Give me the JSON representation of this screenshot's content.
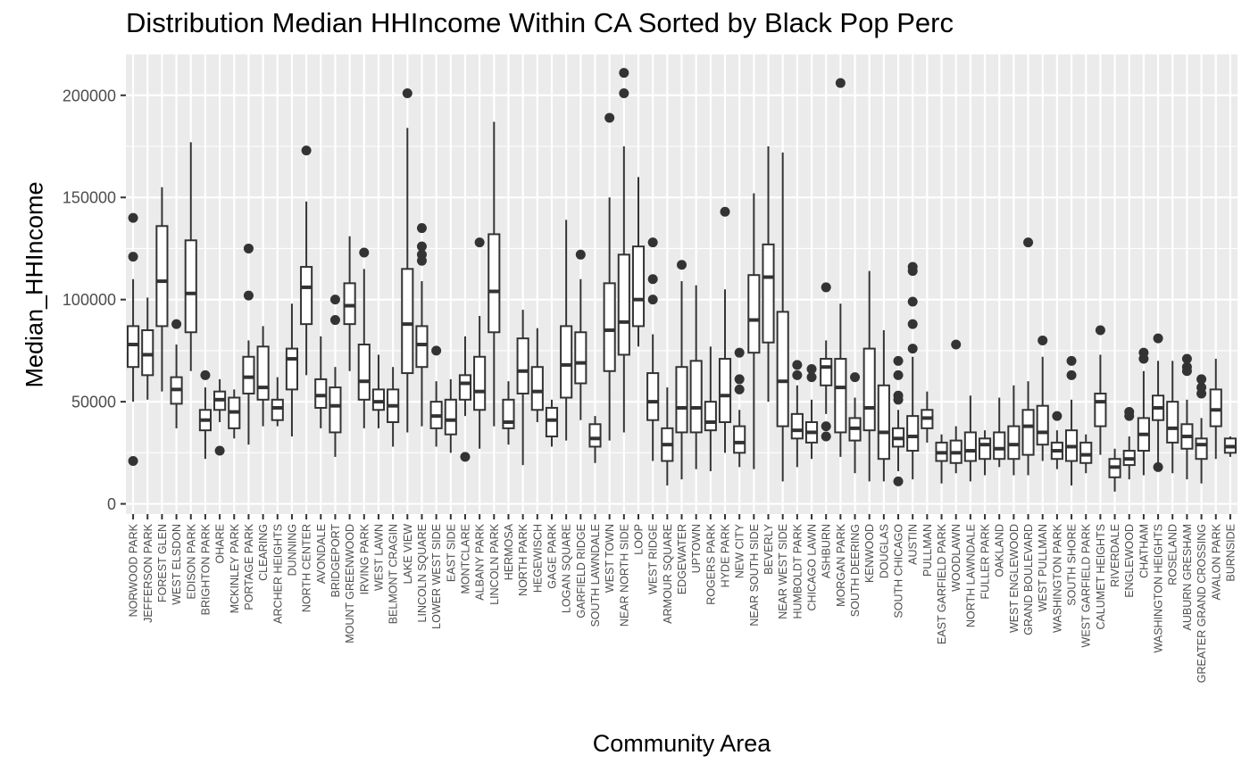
{
  "chart_data": {
    "type": "boxplot",
    "title": "Distribution Median HHIncome Within CA Sorted by Black Pop Perc",
    "xlabel": "Community Area",
    "ylabel": "Median_HHIncome",
    "ylim": [
      -5000,
      220000
    ],
    "yticks": [
      0,
      50000,
      100000,
      150000,
      200000
    ],
    "ytick_labels": [
      "0",
      "50000",
      "100000",
      "150000",
      "200000"
    ],
    "grid": true,
    "background": "#ebebeb",
    "box_fill": "#ffffff",
    "stroke_color": "#333333",
    "categories": [
      "NORWOOD PARK",
      "JEFFERSON PARK",
      "FOREST GLEN",
      "WEST ELSDON",
      "EDISON PARK",
      "BRIGHTON PARK",
      "OHARE",
      "MCKINLEY PARK",
      "PORTAGE PARK",
      "CLEARING",
      "ARCHER HEIGHTS",
      "DUNNING",
      "NORTH CENTER",
      "AVONDALE",
      "BRIDGEPORT",
      "MOUNT GREENWOOD",
      "IRVING PARK",
      "WEST LAWN",
      "BELMONT CRAGIN",
      "LAKE VIEW",
      "LINCOLN SQUARE",
      "LOWER WEST SIDE",
      "EAST SIDE",
      "MONTCLARE",
      "ALBANY PARK",
      "LINCOLN PARK",
      "HERMOSA",
      "NORTH PARK",
      "HEGEWISCH",
      "GAGE PARK",
      "LOGAN SQUARE",
      "GARFIELD RIDGE",
      "SOUTH LAWNDALE",
      "WEST TOWN",
      "NEAR NORTH SIDE",
      "LOOP",
      "WEST RIDGE",
      "ARMOUR SQUARE",
      "EDGEWATER",
      "UPTOWN",
      "ROGERS PARK",
      "HYDE PARK",
      "NEW CITY",
      "NEAR SOUTH SIDE",
      "BEVERLY",
      "NEAR WEST SIDE",
      "HUMBOLDT PARK",
      "CHICAGO LAWN",
      "ASHBURN",
      "MORGAN PARK",
      "SOUTH DEERING",
      "KENWOOD",
      "DOUGLAS",
      "SOUTH CHICAGO",
      "AUSTIN",
      "PULLMAN",
      "EAST GARFIELD PARK",
      "WOODLAWN",
      "NORTH LAWNDALE",
      "FULLER PARK",
      "OAKLAND",
      "WEST ENGLEWOOD",
      "GRAND BOULEVARD",
      "WEST PULLMAN",
      "WASHINGTON PARK",
      "SOUTH SHORE",
      "WEST GARFIELD PARK",
      "CALUMET HEIGHTS",
      "RIVERDALE",
      "ENGLEWOOD",
      "CHATHAM",
      "WASHINGTON HEIGHTS",
      "ROSELAND",
      "AUBURN GRESHAM",
      "GREATER GRAND CROSSING",
      "AVALON PARK",
      "BURNSIDE"
    ],
    "boxes": [
      {
        "lo": 50000,
        "q1": 67000,
        "med": 78000,
        "q3": 87000,
        "hi": 110000,
        "out": [
          140000,
          121000,
          21000
        ]
      },
      {
        "lo": 51000,
        "q1": 63000,
        "med": 73000,
        "q3": 85000,
        "hi": 101000,
        "out": []
      },
      {
        "lo": 55000,
        "q1": 87000,
        "med": 109000,
        "q3": 136000,
        "hi": 155000,
        "out": []
      },
      {
        "lo": 37000,
        "q1": 49000,
        "med": 56000,
        "q3": 62000,
        "hi": 78000,
        "out": [
          88000
        ]
      },
      {
        "lo": 65000,
        "q1": 84000,
        "med": 103000,
        "q3": 129000,
        "hi": 177000,
        "out": []
      },
      {
        "lo": 22000,
        "q1": 36000,
        "med": 41000,
        "q3": 46000,
        "hi": 57000,
        "out": [
          63000
        ]
      },
      {
        "lo": 40000,
        "q1": 46000,
        "med": 51000,
        "q3": 55000,
        "hi": 61000,
        "out": [
          26000
        ]
      },
      {
        "lo": 32000,
        "q1": 37000,
        "med": 45000,
        "q3": 52000,
        "hi": 56000,
        "out": []
      },
      {
        "lo": 29000,
        "q1": 54000,
        "med": 62000,
        "q3": 72000,
        "hi": 80000,
        "out": [
          125000,
          102000
        ]
      },
      {
        "lo": 38000,
        "q1": 51000,
        "med": 57000,
        "q3": 77000,
        "hi": 87000,
        "out": []
      },
      {
        "lo": 38000,
        "q1": 41000,
        "med": 47000,
        "q3": 51000,
        "hi": 62000,
        "out": []
      },
      {
        "lo": 33000,
        "q1": 56000,
        "med": 71000,
        "q3": 76000,
        "hi": 98000,
        "out": []
      },
      {
        "lo": 63000,
        "q1": 88000,
        "med": 106000,
        "q3": 116000,
        "hi": 148000,
        "out": [
          173000
        ]
      },
      {
        "lo": 37000,
        "q1": 47000,
        "med": 53000,
        "q3": 61000,
        "hi": 82000,
        "out": []
      },
      {
        "lo": 23000,
        "q1": 35000,
        "med": 48000,
        "q3": 57000,
        "hi": 67000,
        "out": [
          100000,
          90000
        ]
      },
      {
        "lo": 65000,
        "q1": 88000,
        "med": 97000,
        "q3": 108000,
        "hi": 131000,
        "out": []
      },
      {
        "lo": 37000,
        "q1": 51000,
        "med": 60000,
        "q3": 78000,
        "hi": 115000,
        "out": [
          123000
        ]
      },
      {
        "lo": 37000,
        "q1": 46000,
        "med": 50000,
        "q3": 56000,
        "hi": 73000,
        "out": []
      },
      {
        "lo": 28000,
        "q1": 40000,
        "med": 48000,
        "q3": 56000,
        "hi": 67000,
        "out": []
      },
      {
        "lo": 35000,
        "q1": 64000,
        "med": 88000,
        "q3": 115000,
        "hi": 184000,
        "out": [
          201000
        ]
      },
      {
        "lo": 38000,
        "q1": 67000,
        "med": 78000,
        "q3": 87000,
        "hi": 109000,
        "out": [
          135000,
          126000,
          122000,
          119000
        ]
      },
      {
        "lo": 28000,
        "q1": 37000,
        "med": 43000,
        "q3": 50000,
        "hi": 60000,
        "out": [
          75000
        ]
      },
      {
        "lo": 25000,
        "q1": 34000,
        "med": 41000,
        "q3": 51000,
        "hi": 61000,
        "out": []
      },
      {
        "lo": 43000,
        "q1": 51000,
        "med": 59000,
        "q3": 63000,
        "hi": 82000,
        "out": [
          23000
        ]
      },
      {
        "lo": 27000,
        "q1": 46000,
        "med": 55000,
        "q3": 72000,
        "hi": 92000,
        "out": [
          128000
        ]
      },
      {
        "lo": 38000,
        "q1": 84000,
        "med": 104000,
        "q3": 132000,
        "hi": 187000,
        "out": []
      },
      {
        "lo": 29000,
        "q1": 37000,
        "med": 40000,
        "q3": 51000,
        "hi": 60000,
        "out": []
      },
      {
        "lo": 19000,
        "q1": 54000,
        "med": 65000,
        "q3": 81000,
        "hi": 95000,
        "out": []
      },
      {
        "lo": 40000,
        "q1": 46000,
        "med": 55000,
        "q3": 67000,
        "hi": 86000,
        "out": []
      },
      {
        "lo": 28000,
        "q1": 33000,
        "med": 41000,
        "q3": 47000,
        "hi": 51000,
        "out": []
      },
      {
        "lo": 31000,
        "q1": 52000,
        "med": 68000,
        "q3": 87000,
        "hi": 139000,
        "out": []
      },
      {
        "lo": 41000,
        "q1": 59000,
        "med": 69000,
        "q3": 84000,
        "hi": 110000,
        "out": [
          122000
        ]
      },
      {
        "lo": 20000,
        "q1": 28000,
        "med": 32000,
        "q3": 39000,
        "hi": 43000,
        "out": []
      },
      {
        "lo": 31000,
        "q1": 65000,
        "med": 85000,
        "q3": 108000,
        "hi": 150000,
        "out": [
          189000
        ]
      },
      {
        "lo": 35000,
        "q1": 73000,
        "med": 89000,
        "q3": 122000,
        "hi": 175000,
        "out": [
          211000,
          201000
        ]
      },
      {
        "lo": 77000,
        "q1": 87000,
        "med": 100000,
        "q3": 126000,
        "hi": 160000,
        "out": []
      },
      {
        "lo": 21000,
        "q1": 41000,
        "med": 50000,
        "q3": 64000,
        "hi": 83000,
        "out": [
          128000,
          110000,
          100000
        ]
      },
      {
        "lo": 9000,
        "q1": 21000,
        "med": 29000,
        "q3": 37000,
        "hi": 57000,
        "out": []
      },
      {
        "lo": 12000,
        "q1": 35000,
        "med": 47000,
        "q3": 67000,
        "hi": 109000,
        "out": [
          117000
        ]
      },
      {
        "lo": 17000,
        "q1": 35000,
        "med": 47000,
        "q3": 70000,
        "hi": 107000,
        "out": []
      },
      {
        "lo": 16000,
        "q1": 36000,
        "med": 40000,
        "q3": 50000,
        "hi": 77000,
        "out": []
      },
      {
        "lo": 25000,
        "q1": 40000,
        "med": 53000,
        "q3": 71000,
        "hi": 105000,
        "out": [
          143000
        ]
      },
      {
        "lo": 18000,
        "q1": 25000,
        "med": 30000,
        "q3": 38000,
        "hi": 46000,
        "out": [
          74000,
          61000,
          56000
        ]
      },
      {
        "lo": 17000,
        "q1": 74000,
        "med": 90000,
        "q3": 112000,
        "hi": 152000,
        "out": []
      },
      {
        "lo": 50000,
        "q1": 79000,
        "med": 111000,
        "q3": 127000,
        "hi": 175000,
        "out": []
      },
      {
        "lo": 11000,
        "q1": 38000,
        "med": 60000,
        "q3": 94000,
        "hi": 172000,
        "out": []
      },
      {
        "lo": 18000,
        "q1": 32000,
        "med": 36000,
        "q3": 44000,
        "hi": 58000,
        "out": [
          68000,
          63000
        ]
      },
      {
        "lo": 22000,
        "q1": 30000,
        "med": 35000,
        "q3": 40000,
        "hi": 51000,
        "out": [
          66000,
          62000
        ]
      },
      {
        "lo": 44000,
        "q1": 58000,
        "med": 67000,
        "q3": 71000,
        "hi": 80000,
        "out": [
          106000,
          38000,
          33000
        ]
      },
      {
        "lo": 23000,
        "q1": 35000,
        "med": 57000,
        "q3": 71000,
        "hi": 98000,
        "out": [
          206000
        ]
      },
      {
        "lo": 15000,
        "q1": 31000,
        "med": 37000,
        "q3": 42000,
        "hi": 52000,
        "out": [
          62000
        ]
      },
      {
        "lo": 11000,
        "q1": 36000,
        "med": 47000,
        "q3": 76000,
        "hi": 114000,
        "out": []
      },
      {
        "lo": 11000,
        "q1": 22000,
        "med": 35000,
        "q3": 58000,
        "hi": 85000,
        "out": []
      },
      {
        "lo": 16000,
        "q1": 28000,
        "med": 32000,
        "q3": 37000,
        "hi": 46000,
        "out": [
          70000,
          63000,
          53000,
          51000,
          11000
        ]
      },
      {
        "lo": 12000,
        "q1": 26000,
        "med": 33000,
        "q3": 43000,
        "hi": 72000,
        "out": [
          116000,
          114000,
          99000,
          88000,
          76000
        ]
      },
      {
        "lo": 30000,
        "q1": 37000,
        "med": 42000,
        "q3": 46000,
        "hi": 55000,
        "out": []
      },
      {
        "lo": 10000,
        "q1": 21000,
        "med": 25000,
        "q3": 30000,
        "hi": 34000,
        "out": []
      },
      {
        "lo": 15000,
        "q1": 20000,
        "med": 25000,
        "q3": 31000,
        "hi": 38000,
        "out": [
          78000
        ]
      },
      {
        "lo": 11000,
        "q1": 21000,
        "med": 26000,
        "q3": 35000,
        "hi": 53000,
        "out": []
      },
      {
        "lo": 14000,
        "q1": 22000,
        "med": 29000,
        "q3": 32000,
        "hi": 36000,
        "out": []
      },
      {
        "lo": 18000,
        "q1": 22000,
        "med": 27000,
        "q3": 35000,
        "hi": 52000,
        "out": []
      },
      {
        "lo": 14000,
        "q1": 22000,
        "med": 29000,
        "q3": 38000,
        "hi": 58000,
        "out": []
      },
      {
        "lo": 14000,
        "q1": 24000,
        "med": 38000,
        "q3": 46000,
        "hi": 60000,
        "out": [
          128000
        ]
      },
      {
        "lo": 21000,
        "q1": 29000,
        "med": 35000,
        "q3": 48000,
        "hi": 72000,
        "out": [
          80000
        ]
      },
      {
        "lo": 17000,
        "q1": 22000,
        "med": 26000,
        "q3": 30000,
        "hi": 36000,
        "out": [
          43000
        ]
      },
      {
        "lo": 9000,
        "q1": 21000,
        "med": 28000,
        "q3": 36000,
        "hi": 51000,
        "out": [
          70000,
          63000
        ]
      },
      {
        "lo": 15000,
        "q1": 20000,
        "med": 24000,
        "q3": 30000,
        "hi": 34000,
        "out": []
      },
      {
        "lo": 24000,
        "q1": 38000,
        "med": 50000,
        "q3": 54000,
        "hi": 73000,
        "out": [
          85000
        ]
      },
      {
        "lo": 6000,
        "q1": 13000,
        "med": 18000,
        "q3": 22000,
        "hi": 27000,
        "out": []
      },
      {
        "lo": 12000,
        "q1": 19000,
        "med": 22000,
        "q3": 26000,
        "hi": 33000,
        "out": [
          45000,
          43000
        ]
      },
      {
        "lo": 14000,
        "q1": 26000,
        "med": 34000,
        "q3": 42000,
        "hi": 65000,
        "out": [
          74000,
          71000
        ]
      },
      {
        "lo": 20000,
        "q1": 41000,
        "med": 47000,
        "q3": 53000,
        "hi": 70000,
        "out": [
          81000,
          18000
        ]
      },
      {
        "lo": 15000,
        "q1": 30000,
        "med": 37000,
        "q3": 50000,
        "hi": 70000,
        "out": []
      },
      {
        "lo": 12000,
        "q1": 27000,
        "med": 33000,
        "q3": 39000,
        "hi": 51000,
        "out": [
          71000,
          67000,
          65000
        ]
      },
      {
        "lo": 10000,
        "q1": 22000,
        "med": 29000,
        "q3": 32000,
        "hi": 42000,
        "out": [
          61000,
          57000,
          54000
        ]
      },
      {
        "lo": 22000,
        "q1": 38000,
        "med": 46000,
        "q3": 56000,
        "hi": 71000,
        "out": []
      },
      {
        "lo": 23000,
        "q1": 25000,
        "med": 28000,
        "q3": 32000,
        "hi": 33000,
        "out": []
      }
    ]
  }
}
